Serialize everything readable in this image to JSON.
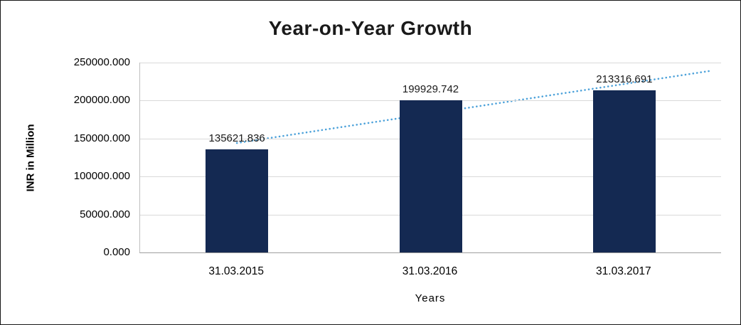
{
  "chart_data": {
    "type": "bar",
    "title": "Year-on-Year Growth",
    "xlabel": "Years",
    "ylabel": "INR in Million",
    "categories": [
      "31.03.2015",
      "31.03.2016",
      "31.03.2017"
    ],
    "values": [
      135621.836,
      199929.742,
      213316.691
    ],
    "data_labels": [
      "135621.836",
      "199929.742",
      "213316.691"
    ],
    "ylim": [
      0,
      250000
    ],
    "y_ticks": [
      "0.000",
      "50000.000",
      "100000.000",
      "150000.000",
      "200000.000",
      "250000.000"
    ],
    "grid": true,
    "legend": "none",
    "bar_color": "#142952",
    "trendline": {
      "type": "linear",
      "style": "dotted",
      "color": "#4da2da"
    }
  }
}
